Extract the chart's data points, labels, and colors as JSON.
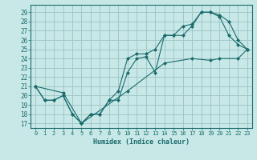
{
  "background_color": "#c8e8e8",
  "grid_color": "#a0c8c8",
  "line_color": "#1a6b6b",
  "marker_style": "D",
  "marker_size": 2.0,
  "xlabel": "Humidex (Indice chaleur)",
  "ylim": [
    16.5,
    29.8
  ],
  "xlim": [
    -0.5,
    23.5
  ],
  "yticks": [
    17,
    18,
    19,
    20,
    21,
    22,
    23,
    24,
    25,
    26,
    27,
    28,
    29
  ],
  "xticks": [
    0,
    1,
    2,
    3,
    4,
    5,
    6,
    7,
    8,
    9,
    10,
    11,
    12,
    13,
    14,
    15,
    16,
    17,
    18,
    19,
    20,
    21,
    22,
    23
  ],
  "lines": [
    {
      "x": [
        0,
        1,
        2,
        3,
        4,
        5,
        6,
        7,
        8,
        9,
        10,
        11,
        12,
        13,
        14,
        15,
        16,
        17,
        18,
        19,
        20,
        21,
        22,
        23
      ],
      "y": [
        21,
        19.5,
        19.5,
        20,
        18,
        17,
        18,
        18,
        19.5,
        19.5,
        22.5,
        24,
        24.2,
        22.5,
        26.5,
        26.5,
        26.5,
        27.5,
        29,
        29,
        28.5,
        26.5,
        25.5,
        25
      ]
    },
    {
      "x": [
        0,
        1,
        2,
        3,
        4,
        5,
        6,
        7,
        8,
        9,
        10,
        11,
        12,
        13,
        14,
        15,
        16,
        17,
        18,
        19,
        20,
        21,
        22,
        23
      ],
      "y": [
        21,
        19.5,
        19.5,
        20,
        18,
        17,
        18,
        18,
        19.5,
        20.5,
        24,
        24.5,
        24.5,
        25,
        26.5,
        26.5,
        27.5,
        27.7,
        29,
        29,
        28.7,
        28,
        26,
        25
      ]
    },
    {
      "x": [
        0,
        3,
        5,
        10,
        14,
        17,
        19,
        20,
        22,
        23
      ],
      "y": [
        21,
        20.3,
        17,
        20.5,
        23.5,
        24,
        23.8,
        24,
        24,
        25
      ]
    }
  ]
}
